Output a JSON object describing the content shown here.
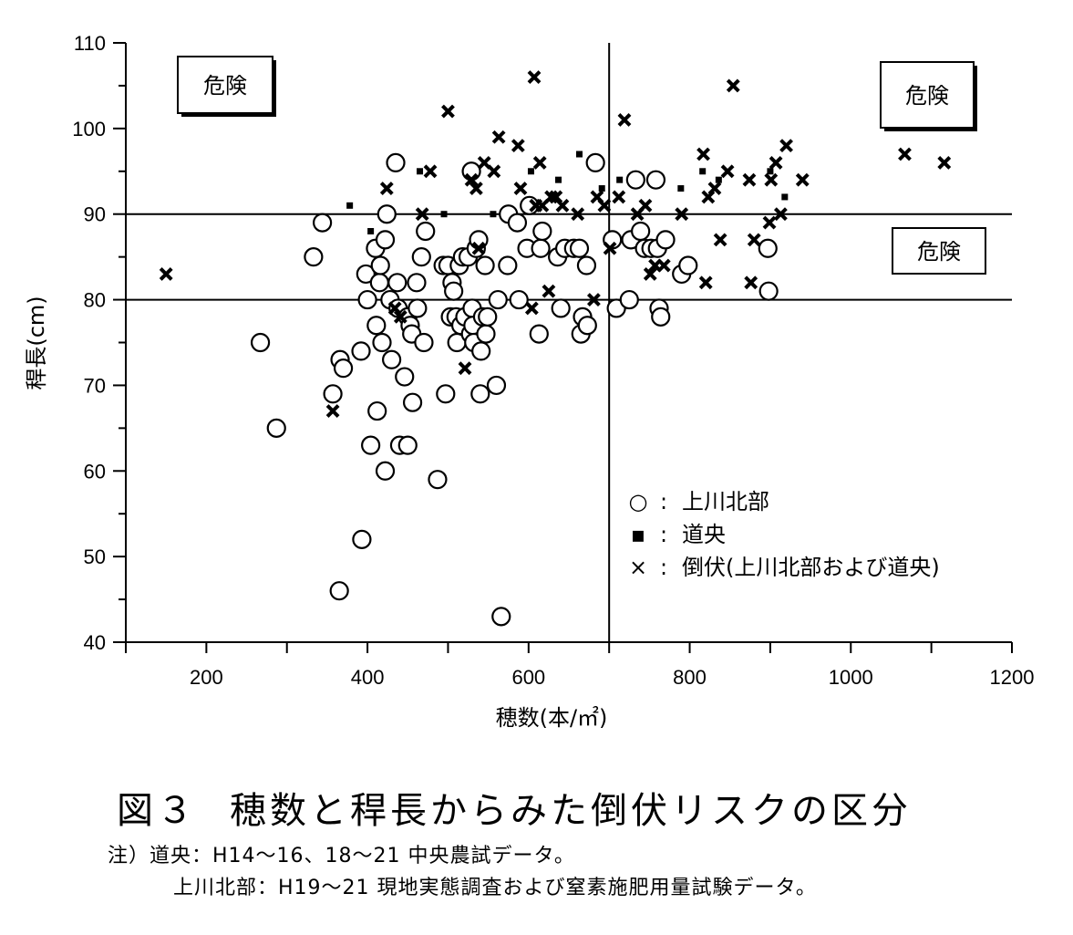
{
  "chart_data": {
    "type": "scatter",
    "xlabel": "穂数(本/㎡)",
    "ylabel": "稈長(cm)",
    "xlim": [
      100,
      1200
    ],
    "ylim": [
      40,
      110
    ],
    "xticks": [
      "200",
      "400",
      "600",
      "800",
      "1000",
      "1200"
    ],
    "xtick_values": [
      200,
      400,
      600,
      800,
      1000,
      1200
    ],
    "yticks": [
      "40",
      "50",
      "60",
      "70",
      "80",
      "90",
      "100",
      "110"
    ],
    "ytick_values": [
      40,
      50,
      60,
      70,
      80,
      90,
      100,
      110
    ],
    "reference_lines": {
      "x": 700,
      "y": [
        90,
        80
      ]
    },
    "region_labels": [
      "危険",
      "危険",
      "危険"
    ],
    "legend": {
      "position": "center-right",
      "entries": [
        {
          "marker": "○",
          "sep": ":",
          "label": "上川北部"
        },
        {
          "marker": "▪",
          "sep": ":",
          "label": "道央"
        },
        {
          "marker": "×",
          "sep": ":",
          "label": "倒伏(上川北部および道央)"
        }
      ]
    },
    "series": [
      {
        "name": "上川北部",
        "marker": "circle",
        "points": [
          [
            267,
            75
          ],
          [
            287,
            65
          ],
          [
            333,
            85
          ],
          [
            344,
            89
          ],
          [
            357,
            69
          ],
          [
            365,
            46
          ],
          [
            366,
            73
          ],
          [
            370,
            72
          ],
          [
            392,
            74
          ],
          [
            393,
            52
          ],
          [
            398,
            83
          ],
          [
            400,
            80
          ],
          [
            404,
            63
          ],
          [
            410,
            86
          ],
          [
            411,
            77
          ],
          [
            412,
            67
          ],
          [
            415,
            82
          ],
          [
            416,
            84
          ],
          [
            418,
            75
          ],
          [
            422,
            60
          ],
          [
            422,
            87
          ],
          [
            424,
            90
          ],
          [
            428,
            80
          ],
          [
            430,
            73
          ],
          [
            435,
            96
          ],
          [
            437,
            82
          ],
          [
            438,
            79
          ],
          [
            440,
            63
          ],
          [
            446,
            71
          ],
          [
            450,
            63
          ],
          [
            450,
            78
          ],
          [
            453,
            77
          ],
          [
            455,
            76
          ],
          [
            456,
            68
          ],
          [
            461,
            82
          ],
          [
            462,
            79
          ],
          [
            467,
            85
          ],
          [
            470,
            75
          ],
          [
            472,
            88
          ],
          [
            487,
            59
          ],
          [
            494,
            84
          ],
          [
            497,
            69
          ],
          [
            500,
            84
          ],
          [
            503,
            78
          ],
          [
            505,
            82
          ],
          [
            507,
            81
          ],
          [
            510,
            78
          ],
          [
            511,
            75
          ],
          [
            514,
            84
          ],
          [
            516,
            77
          ],
          [
            518,
            85
          ],
          [
            521,
            78
          ],
          [
            525,
            85
          ],
          [
            528,
            76
          ],
          [
            529,
            95
          ],
          [
            530,
            79
          ],
          [
            531,
            77
          ],
          [
            532,
            75
          ],
          [
            535,
            86
          ],
          [
            538,
            87
          ],
          [
            540,
            69
          ],
          [
            541,
            74
          ],
          [
            543,
            78
          ],
          [
            546,
            84
          ],
          [
            547,
            76
          ],
          [
            549,
            78
          ],
          [
            560,
            70
          ],
          [
            562,
            80
          ],
          [
            566,
            43
          ],
          [
            574,
            84
          ],
          [
            575,
            90
          ],
          [
            586,
            89
          ],
          [
            588,
            80
          ],
          [
            598,
            86
          ],
          [
            601,
            91
          ],
          [
            613,
            76
          ],
          [
            615,
            86
          ],
          [
            617,
            88
          ],
          [
            636,
            85
          ],
          [
            640,
            79
          ],
          [
            645,
            86
          ],
          [
            656,
            86
          ],
          [
            663,
            86
          ],
          [
            665,
            76
          ],
          [
            667,
            78
          ],
          [
            672,
            84
          ],
          [
            673,
            77
          ],
          [
            683,
            96
          ],
          [
            704,
            87
          ],
          [
            709,
            79
          ],
          [
            725,
            80
          ],
          [
            727,
            87
          ],
          [
            733,
            94
          ],
          [
            739,
            88
          ],
          [
            744,
            86
          ],
          [
            752,
            86
          ],
          [
            758,
            94
          ],
          [
            760,
            86
          ],
          [
            762,
            79
          ],
          [
            764,
            78
          ],
          [
            770,
            87
          ],
          [
            790,
            83
          ],
          [
            798,
            84
          ],
          [
            897,
            86
          ],
          [
            898,
            81
          ]
        ]
      },
      {
        "name": "道央",
        "marker": "square",
        "points": [
          [
            378,
            91
          ],
          [
            404,
            88
          ],
          [
            465,
            95
          ],
          [
            495,
            90
          ],
          [
            556,
            90
          ],
          [
            603,
            95
          ],
          [
            637,
            94
          ],
          [
            663,
            97
          ],
          [
            691,
            93
          ],
          [
            713,
            94
          ],
          [
            789,
            93
          ],
          [
            816,
            95
          ],
          [
            836,
            94
          ],
          [
            900,
            95
          ],
          [
            918,
            92
          ]
        ]
      },
      {
        "name": "倒伏(上川北部および道央)",
        "marker": "x",
        "points": [
          [
            150,
            83
          ],
          [
            357,
            67
          ],
          [
            424,
            93
          ],
          [
            434,
            79
          ],
          [
            441,
            78
          ],
          [
            468,
            90
          ],
          [
            478,
            95
          ],
          [
            500,
            102
          ],
          [
            521,
            72
          ],
          [
            529,
            94
          ],
          [
            535,
            93
          ],
          [
            538,
            86
          ],
          [
            545,
            96
          ],
          [
            557,
            95
          ],
          [
            563,
            99
          ],
          [
            587,
            98
          ],
          [
            590,
            93
          ],
          [
            604,
            79
          ],
          [
            607,
            106
          ],
          [
            609,
            91
          ],
          [
            614,
            96
          ],
          [
            617,
            91
          ],
          [
            625,
            81
          ],
          [
            628,
            92
          ],
          [
            634,
            92
          ],
          [
            642,
            91
          ],
          [
            661,
            90
          ],
          [
            681,
            80
          ],
          [
            685,
            92
          ],
          [
            694,
            91
          ],
          [
            701,
            86
          ],
          [
            712,
            92
          ],
          [
            719,
            101
          ],
          [
            735,
            90
          ],
          [
            745,
            91
          ],
          [
            751,
            83
          ],
          [
            757,
            84
          ],
          [
            768,
            84
          ],
          [
            790,
            90
          ],
          [
            817,
            97
          ],
          [
            820,
            82
          ],
          [
            823,
            92
          ],
          [
            831,
            93
          ],
          [
            838,
            87
          ],
          [
            847,
            95
          ],
          [
            854,
            105
          ],
          [
            874,
            94
          ],
          [
            876,
            82
          ],
          [
            880,
            87
          ],
          [
            899,
            89
          ],
          [
            901,
            94
          ],
          [
            907,
            96
          ],
          [
            913,
            90
          ],
          [
            920,
            98
          ],
          [
            940,
            94
          ],
          [
            1067,
            97
          ],
          [
            1116,
            96
          ]
        ]
      }
    ]
  },
  "caption": {
    "figure_no": "図３",
    "title": "穂数と稈長からみた倒伏リスクの区分"
  },
  "notes": {
    "line1": "注）道央：H14～16、18～21 中央農試データ。",
    "line2": "上川北部：H19～21 現地実態調査および窒素施肥用量試験データ。"
  }
}
